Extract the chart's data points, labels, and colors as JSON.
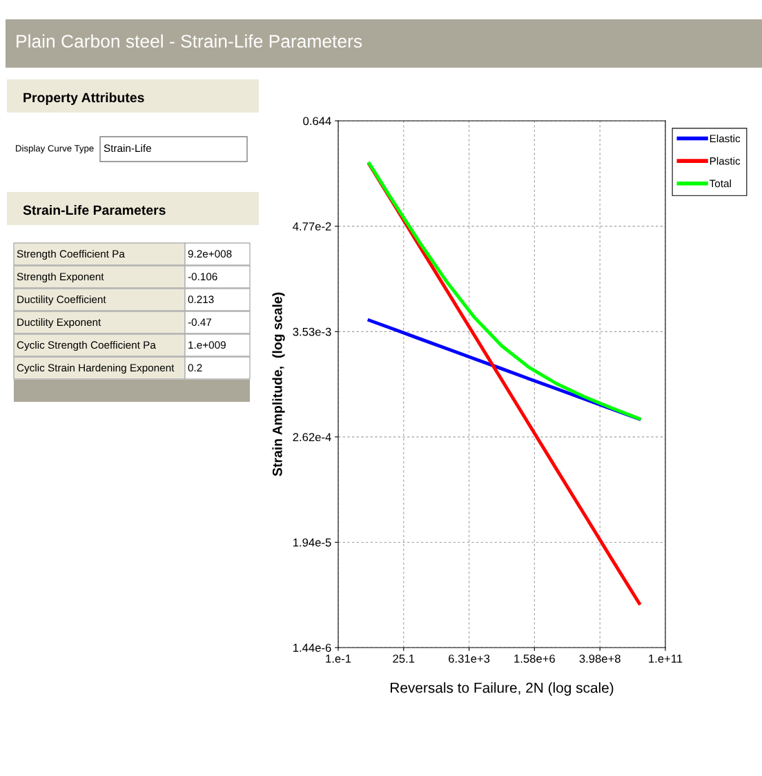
{
  "chart_data": {
    "type": "line",
    "title": "Plain Carbon steel - Strain-Life Parameters",
    "xlabel": "Reversals to Failure, 2N (log scale)",
    "ylabel": "Strain Amplitude,  (log scale)",
    "x": [
      1.38,
      10,
      100,
      1000,
      10000,
      100000,
      1000000,
      10000000,
      100000000,
      1000000000,
      11000000000
    ],
    "series": [
      {
        "name": "Elastic",
        "color": "#0000ff",
        "values": [
          0.00467,
          0.00378,
          0.00295,
          0.00231,
          0.0018,
          0.00141,
          0.0011,
          0.000861,
          0.000673,
          0.000526,
          0.000407
        ]
      },
      {
        "name": "Plastic",
        "color": "#ff0000",
        "values": [
          0.22,
          0.0857,
          0.0286,
          0.00957,
          0.0032,
          0.00107,
          0.000357,
          0.000119,
          3.99e-05,
          1.33e-05,
          4.3e-06
        ]
      },
      {
        "name": "Total",
        "color": "#00ff00",
        "values": [
          0.2247,
          0.0895,
          0.0316,
          0.0119,
          0.005,
          0.00248,
          0.00146,
          0.00098,
          0.000713,
          0.000539,
          0.000411
        ]
      }
    ],
    "log": "xy",
    "xlim": [
      0.1,
      100000000000
    ],
    "xticks": [
      {
        "value": 0.1,
        "label": "1.e-1"
      },
      25.1,
      {
        "value": 6310,
        "label": "6.31e+3"
      },
      {
        "value": 1580000,
        "label": "1.58e+6"
      },
      {
        "value": 398000000,
        "label": "3.98e+8"
      },
      {
        "value": 100000000000,
        "label": "1.e+11"
      }
    ],
    "ylim": [
      1.44e-06,
      0.644
    ],
    "yticks": [
      0.644,
      {
        "value": 0.0477,
        "label": "4.77e-2"
      },
      {
        "value": 0.00353,
        "label": "3.53e-3"
      },
      {
        "value": 0.000262,
        "label": "2.62e-4"
      },
      {
        "value": 1.94e-05,
        "label": "1.94e-5"
      },
      {
        "value": 1.44e-06,
        "label": "1.44e-6"
      }
    ],
    "grid": true,
    "legend": "top right",
    "line_style": "solid",
    "marker": "none",
    "annotations": [
      "Property Attributes",
      "Display Curve Type",
      "Strain-Life",
      "Strain-Life Parameters",
      "Strength Coefficient Pa",
      "9.2e+008",
      "Strength Exponent",
      "-0.106",
      "Ductility Coefficient",
      "0.213",
      "Ductility Exponent",
      "-0.47",
      "Cyclic Strength Coefficient Pa",
      "1.e+009",
      "Cyclic Strain Hardening Exponent",
      "0.2"
    ]
  }
}
